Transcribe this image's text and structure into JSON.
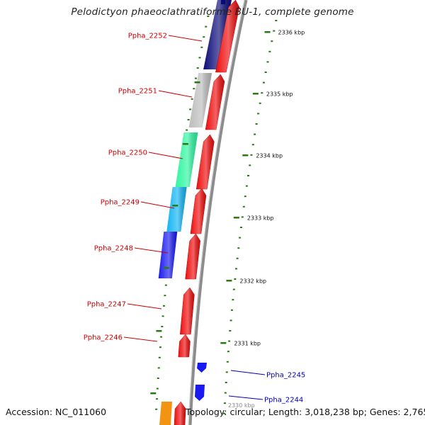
{
  "title": "Pelodictyon phaeoclathratiforme BU-1, complete genome",
  "accession": "Accession: NC_011060",
  "topology": "Topology: circular; Length: 3,018,238 bp; Genes: 2,765",
  "ruler_unit": "kbp",
  "ruler_ticks": [
    "2336 kbp",
    "2335 kbp",
    "2334 kbp",
    "2333 kbp",
    "2332 kbp",
    "2331 kbp"
  ],
  "partial_label": "2330 kbp",
  "genes_reverse": [
    {
      "name": "Ppha_2252",
      "color": "#0b0b78"
    },
    {
      "name": "Ppha_2251",
      "color": "#bdbdbd"
    },
    {
      "name": "Ppha_2250",
      "color": "#2df5a0"
    },
    {
      "name": "Ppha_2249",
      "color": "#12b4f4"
    },
    {
      "name": "Ppha_2248",
      "color": "#1a1af0"
    },
    {
      "name": "Ppha_2247",
      "color": "#d91414"
    },
    {
      "name": "Ppha_2246",
      "color": "#d91414"
    }
  ],
  "genes_forward": [
    {
      "name": "Ppha_2245",
      "color": "#1a1af0"
    },
    {
      "name": "Ppha_2244",
      "color": "#1a1af0"
    }
  ],
  "colors": {
    "label_red": "#cc0000",
    "label_blue": "#0000bb",
    "tick_green": "#2a7a12",
    "cds_red": "#ee0d0d",
    "backbone": "#8c8c8c",
    "orange": "#f29411"
  }
}
